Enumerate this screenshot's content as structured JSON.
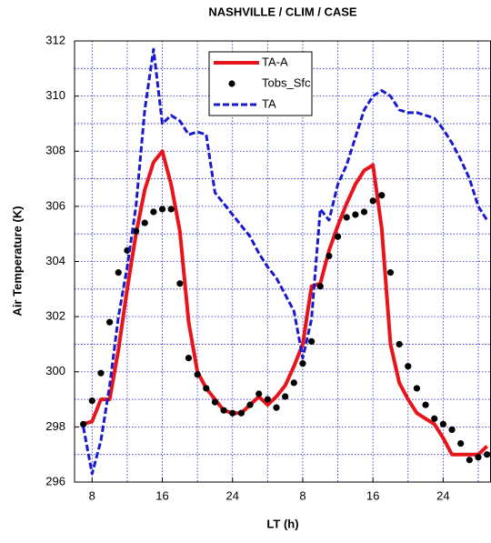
{
  "chart_data": {
    "type": "line",
    "title": "NASHVILLE / CLIM / CASE",
    "xlabel": "LT (h)",
    "ylabel": "Air Temperature (K)",
    "x": [
      7,
      8,
      9,
      10,
      11,
      12,
      13,
      14,
      15,
      16,
      17,
      18,
      19,
      20,
      21,
      22,
      23,
      24,
      25,
      26,
      27,
      28,
      29,
      30,
      31,
      32,
      33,
      34,
      35,
      36,
      37,
      38,
      39,
      40,
      41,
      42,
      43,
      44,
      45,
      46,
      47,
      48,
      49,
      50,
      51,
      52,
      53
    ],
    "series": [
      {
        "name": "TA-A",
        "color": "#e8141b",
        "style": "solid",
        "values": [
          298.1,
          298.2,
          299,
          299,
          300.8,
          303,
          305,
          306.6,
          307.6,
          308,
          306.8,
          305.1,
          301.8,
          300,
          299.4,
          299,
          298.6,
          298.5,
          298.5,
          298.8,
          299.1,
          298.8,
          299.1,
          299.5,
          300.2,
          301,
          303.1,
          303.2,
          304.4,
          305.3,
          306.1,
          306.8,
          307.3,
          307.5,
          305.2,
          301,
          299.6,
          299,
          298.5,
          298.3,
          298.1,
          297.6,
          297,
          297,
          297,
          297,
          297.3
        ]
      },
      {
        "name": "Tobs_Sfc",
        "color": "#000000",
        "style": "marker",
        "values": [
          298.1,
          298.95,
          299.95,
          301.8,
          303.6,
          304.4,
          305.1,
          305.4,
          305.8,
          305.9,
          305.9,
          303.2,
          300.5,
          299.9,
          299.4,
          298.9,
          298.6,
          298.5,
          298.5,
          298.8,
          299.2,
          299,
          298.7,
          299.1,
          299.6,
          300.3,
          301.1,
          303.1,
          304.2,
          304.9,
          305.6,
          305.7,
          305.8,
          306.2,
          306.4,
          303.6,
          301,
          300.2,
          299.4,
          298.8,
          298.3,
          298.1,
          297.9,
          297.4,
          296.8,
          296.9,
          297
        ]
      },
      {
        "name": "TA",
        "color": "#1a1acd",
        "style": "dashed",
        "values": [
          298,
          296.3,
          297.5,
          299.5,
          302,
          303.8,
          306,
          309.5,
          311.7,
          309,
          309.3,
          309.1,
          308.6,
          308.7,
          308.6,
          306.5,
          306.1,
          305.7,
          305.3,
          304.9,
          304.3,
          303.8,
          303.4,
          302.8,
          302.2,
          300.5,
          301.9,
          305.9,
          305.5,
          306.8,
          307.5,
          308.5,
          309.5,
          310,
          310.2,
          310,
          309.5,
          309.4,
          309.4,
          309.3,
          309.2,
          308.8,
          308.3,
          307.7,
          307,
          306,
          305.5
        ]
      }
    ],
    "xlim": [
      6,
      53.4
    ],
    "ylim": [
      296,
      312
    ],
    "xticks": [
      8,
      16,
      24,
      {
        "value": 32,
        "label": "8"
      },
      {
        "value": 40,
        "label": "16"
      },
      {
        "value": 48,
        "label": "24"
      }
    ],
    "yticks": [
      296,
      298,
      300,
      302,
      304,
      306,
      308,
      310,
      312
    ],
    "xgrid": [
      8,
      12,
      16,
      20,
      24,
      28,
      32,
      36,
      40,
      44,
      48,
      52
    ],
    "ygrid": [
      296,
      297,
      298,
      299,
      300,
      301,
      302,
      303,
      304,
      305,
      306,
      307,
      308,
      309,
      310,
      311,
      312
    ],
    "grid": true,
    "legend": "top-center"
  }
}
